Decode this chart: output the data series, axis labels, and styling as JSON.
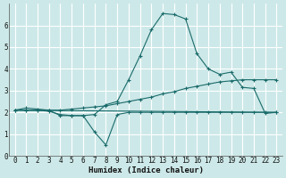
{
  "xlabel": "Humidex (Indice chaleur)",
  "bg_color": "#cde8e8",
  "grid_color": "#ffffff",
  "line_color": "#1a6b6b",
  "xlim": [
    -0.5,
    23.5
  ],
  "ylim": [
    0,
    7
  ],
  "xticks": [
    0,
    1,
    2,
    3,
    4,
    5,
    6,
    7,
    8,
    9,
    10,
    11,
    12,
    13,
    14,
    15,
    16,
    17,
    18,
    19,
    20,
    21,
    22,
    23
  ],
  "yticks": [
    0,
    1,
    2,
    3,
    4,
    5,
    6
  ],
  "series": [
    {
      "x": [
        0,
        1,
        2,
        3,
        4,
        5,
        6,
        7,
        8,
        9,
        10,
        11,
        12,
        13,
        14,
        15,
        16,
        17,
        18,
        19,
        20,
        21,
        22,
        23
      ],
      "y": [
        2.1,
        2.2,
        2.15,
        2.1,
        1.85,
        1.85,
        1.85,
        1.9,
        2.35,
        2.5,
        3.5,
        4.6,
        5.8,
        6.55,
        6.5,
        6.3,
        4.7,
        4.0,
        3.75,
        3.85,
        3.15,
        3.1,
        1.95,
        2.0
      ],
      "marker": "+"
    },
    {
      "x": [
        0,
        1,
        2,
        3,
        4,
        5,
        6,
        7,
        8,
        9,
        10,
        11,
        12,
        13,
        14,
        15,
        16,
        17,
        18,
        19,
        20,
        21,
        22,
        23
      ],
      "y": [
        2.1,
        2.1,
        2.1,
        2.1,
        2.1,
        2.15,
        2.2,
        2.25,
        2.3,
        2.4,
        2.5,
        2.6,
        2.7,
        2.85,
        2.95,
        3.1,
        3.2,
        3.3,
        3.4,
        3.45,
        3.5,
        3.5,
        3.5,
        3.5
      ],
      "marker": "+"
    },
    {
      "x": [
        0,
        1,
        2,
        3,
        4,
        5,
        6,
        7,
        8,
        9,
        10,
        11,
        12,
        13,
        14,
        15,
        16,
        17,
        18,
        19,
        20,
        21,
        22,
        23
      ],
      "y": [
        2.1,
        2.1,
        2.1,
        2.05,
        1.9,
        1.85,
        1.85,
        1.1,
        0.5,
        1.9,
        2.0,
        2.0,
        2.0,
        2.0,
        2.0,
        2.0,
        2.0,
        2.0,
        2.0,
        2.0,
        2.0,
        2.0,
        2.0,
        2.0
      ],
      "marker": "+"
    },
    {
      "x": [
        0,
        23
      ],
      "y": [
        2.1,
        2.0
      ],
      "marker": null
    }
  ]
}
